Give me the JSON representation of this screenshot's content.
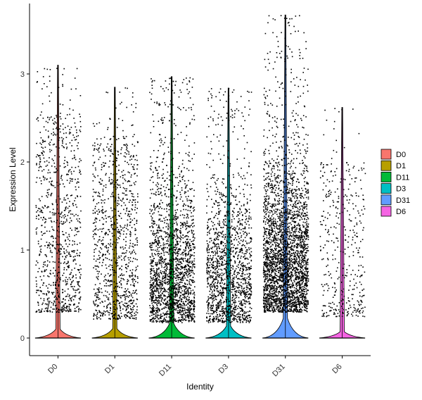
{
  "chart_data": {
    "type": "violin",
    "xlabel": "Identity",
    "ylabel": "Expression Level",
    "categories": [
      "D0",
      "D1",
      "D11",
      "D3",
      "D31",
      "D6"
    ],
    "ylim": [
      -0.2,
      3.8
    ],
    "yticks": [
      0,
      1,
      2,
      3
    ],
    "grid": false,
    "legend_position": "right",
    "series": [
      {
        "name": "D0",
        "color": "#F8766D",
        "max": 3.1,
        "n_points": 900,
        "low": 0.3,
        "high": 2.55
      },
      {
        "name": "D1",
        "color": "#B79F00",
        "max": 2.85,
        "n_points": 1000,
        "low": 0.22,
        "high": 2.3
      },
      {
        "name": "D11",
        "color": "#00BA38",
        "max": 2.97,
        "n_points": 2000,
        "low": 0.18,
        "high": 2.4
      },
      {
        "name": "D3",
        "color": "#00BFC4",
        "max": 2.84,
        "n_points": 1500,
        "low": 0.18,
        "high": 2.35
      },
      {
        "name": "D31",
        "color": "#619CFF",
        "max": 3.67,
        "n_points": 3000,
        "low": 0.3,
        "high": 2.6
      },
      {
        "name": "D6",
        "color": "#F564E3",
        "max": 2.62,
        "n_points": 400,
        "low": 0.25,
        "high": 2.0
      }
    ]
  }
}
